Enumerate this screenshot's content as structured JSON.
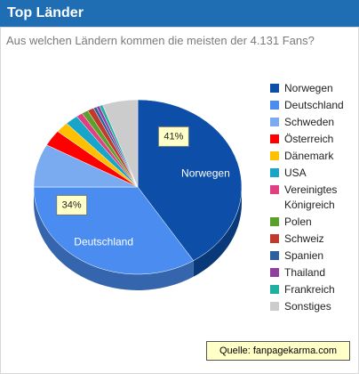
{
  "header": {
    "title": "Top Länder"
  },
  "subtitle": "Aus welchen Ländern kommen die meisten der 4.131 Fans?",
  "source": "Quelle: fanpagekarma.com",
  "chart_data": {
    "type": "pie",
    "categories": [
      "Norwegen",
      "Deutschland",
      "Schweden",
      "Österreich",
      "Dänemark",
      "USA",
      "Vereinigtes Königreich",
      "Polen",
      "Schweiz",
      "Spanien",
      "Thailand",
      "Frankreich",
      "Sonstiges"
    ],
    "values": [
      41,
      34,
      8,
      3,
      2,
      2,
      1,
      1,
      1,
      0.5,
      0.5,
      0.5,
      5.5
    ],
    "value_labels": [
      "41%",
      "34%",
      null,
      null,
      null,
      null,
      null,
      null,
      null,
      null,
      null,
      null,
      null
    ],
    "colors": [
      "#0d4fa8",
      "#4a8cf0",
      "#7aaaf0",
      "#ff0000",
      "#ffc000",
      "#17a5c8",
      "#e0407f",
      "#5aa02c",
      "#c0392b",
      "#2e5f9e",
      "#8e3fa0",
      "#20b0a0",
      "#cccccc"
    ],
    "legend": "right"
  }
}
